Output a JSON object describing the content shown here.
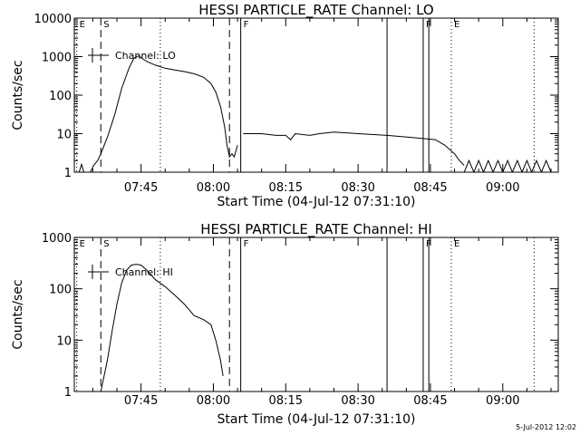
{
  "footer": {
    "date_stamp": "5-Jul-2012 12:02"
  },
  "chart_data": [
    {
      "type": "line",
      "title": "HESSI PARTICLE_RATE Channel: LO",
      "xlabel": "Start Time (04-Jul-12 07:31:10)",
      "ylabel": "Counts/sec",
      "yscale": "log",
      "xlim": [
        "07:31:10",
        "09:11:30"
      ],
      "ylim": [
        1,
        10000
      ],
      "x_ticks": [
        "07:45",
        "08:00",
        "08:15",
        "08:30",
        "08:45",
        "09:00"
      ],
      "y_ticks": [
        "1",
        "10",
        "100",
        "1000",
        "10000"
      ],
      "legend": {
        "position": "top-left",
        "entries": [
          "Channel: LO"
        ]
      },
      "series": [
        {
          "name": "Channel: LO",
          "segments": [
            [
              [
                "07:31:10",
                1
              ],
              [
                "07:32:10",
                1
              ],
              [
                "07:32:40",
                1.6
              ],
              [
                "07:33:10",
                1
              ],
              [
                "07:34:30",
                1
              ],
              [
                "07:35:10",
                1.5
              ],
              [
                "07:36:00",
                2
              ],
              [
                "07:36:40",
                3
              ],
              [
                "07:38:00",
                8
              ],
              [
                "07:39:30",
                30
              ],
              [
                "07:41:00",
                150
              ],
              [
                "07:42:30",
                500
              ],
              [
                "07:43:30",
                900
              ],
              [
                "07:44:30",
                1050
              ],
              [
                "07:45:30",
                850
              ],
              [
                "07:46:30",
                720
              ],
              [
                "07:48:00",
                600
              ],
              [
                "07:50:00",
                500
              ],
              [
                "07:52:00",
                450
              ],
              [
                "07:54:00",
                410
              ],
              [
                "07:56:00",
                360
              ],
              [
                "07:58:00",
                290
              ],
              [
                "07:59:30",
                200
              ],
              [
                "08:00:30",
                120
              ],
              [
                "08:01:30",
                50
              ],
              [
                "08:02:20",
                15
              ],
              [
                "08:02:50",
                5
              ],
              [
                "08:03:20",
                2.5
              ],
              [
                "08:03:50",
                3
              ],
              [
                "08:04:20",
                2.5
              ],
              [
                "08:05:00",
                5
              ]
            ],
            [
              [
                "08:06:10",
                10
              ],
              [
                "08:10:00",
                10
              ],
              [
                "08:13:00",
                9
              ],
              [
                "08:15:00",
                9
              ],
              [
                "08:16:00",
                7
              ],
              [
                "08:17:00",
                10
              ],
              [
                "08:20:00",
                9
              ],
              [
                "08:22:00",
                10
              ],
              [
                "08:25:00",
                11
              ],
              [
                "08:30:00",
                10
              ],
              [
                "08:36:00",
                9
              ],
              [
                "08:41:00",
                8
              ],
              [
                "08:46:00",
                7
              ],
              [
                "08:48:00",
                5
              ],
              [
                "08:50:00",
                3
              ],
              [
                "08:51:00",
                2
              ],
              [
                "08:52:00",
                1.5
              ]
            ],
            [
              [
                "08:52:00",
                1
              ],
              [
                "08:53:00",
                2
              ],
              [
                "08:54:00",
                1
              ],
              [
                "08:55:00",
                2
              ],
              [
                "08:56:00",
                1
              ],
              [
                "08:57:00",
                2
              ],
              [
                "08:58:00",
                1
              ],
              [
                "08:59:00",
                2
              ],
              [
                "09:00:00",
                1
              ],
              [
                "09:01:00",
                2
              ],
              [
                "09:02:00",
                1
              ],
              [
                "09:03:00",
                2
              ],
              [
                "09:04:00",
                1
              ],
              [
                "09:05:00",
                2
              ],
              [
                "09:06:00",
                1
              ],
              [
                "09:07:00",
                2
              ],
              [
                "09:08:00",
                1
              ],
              [
                "09:09:00",
                2
              ],
              [
                "09:10:00",
                1
              ]
            ]
          ]
        }
      ],
      "markers": [
        {
          "x": "07:31:40",
          "label": "E",
          "style": "dotted"
        },
        {
          "x": "07:36:40",
          "label": "S",
          "style": "dashed"
        },
        {
          "x": "07:49:00",
          "label": "",
          "style": "dotted"
        },
        {
          "x": "08:03:20",
          "label": "",
          "style": "dashed"
        },
        {
          "x": "08:05:40",
          "label": "F",
          "style": "solid"
        },
        {
          "x": "08:36:00",
          "label": "",
          "style": "solid"
        },
        {
          "x": "08:43:30",
          "label": "F",
          "style": "solid"
        },
        {
          "x": "08:44:40",
          "label": "",
          "style": "solid"
        },
        {
          "x": "08:49:20",
          "label": "E",
          "style": "dotted"
        },
        {
          "x": "09:06:30",
          "label": "",
          "style": "dotted"
        }
      ]
    },
    {
      "type": "line",
      "title": "HESSI PARTICLE_RATE Channel: HI",
      "xlabel": "Start Time (04-Jul-12 07:31:10)",
      "ylabel": "Counts/sec",
      "yscale": "log",
      "xlim": [
        "07:31:10",
        "09:11:30"
      ],
      "ylim": [
        1,
        1000
      ],
      "x_ticks": [
        "07:45",
        "08:00",
        "08:15",
        "08:30",
        "08:45",
        "09:00"
      ],
      "y_ticks": [
        "1",
        "10",
        "100",
        "1000"
      ],
      "legend": {
        "position": "top-left",
        "entries": [
          "Channel: HI"
        ]
      },
      "series": [
        {
          "name": "Channel: HI",
          "segments": [
            [
              [
                "07:36:40",
                1
              ],
              [
                "07:38:00",
                4
              ],
              [
                "07:39:00",
                15
              ],
              [
                "07:40:00",
                50
              ],
              [
                "07:41:00",
                130
              ],
              [
                "07:42:00",
                230
              ],
              [
                "07:43:00",
                290
              ],
              [
                "07:44:00",
                300
              ],
              [
                "07:45:00",
                290
              ],
              [
                "07:46:00",
                240
              ],
              [
                "07:47:00",
                190
              ],
              [
                "07:48:00",
                150
              ],
              [
                "07:50:00",
                110
              ],
              [
                "07:52:00",
                75
              ],
              [
                "07:54:00",
                50
              ],
              [
                "07:56:00",
                30
              ],
              [
                "07:58:00",
                25
              ],
              [
                "07:59:30",
                20
              ],
              [
                "08:00:30",
                10
              ],
              [
                "08:01:30",
                4
              ],
              [
                "08:02:00",
                2
              ]
            ]
          ]
        }
      ],
      "markers": [
        {
          "x": "07:31:40",
          "label": "E",
          "style": "dotted"
        },
        {
          "x": "07:36:40",
          "label": "S",
          "style": "dashed"
        },
        {
          "x": "07:49:00",
          "label": "",
          "style": "dotted"
        },
        {
          "x": "08:03:20",
          "label": "",
          "style": "dashed"
        },
        {
          "x": "08:05:40",
          "label": "F",
          "style": "solid"
        },
        {
          "x": "08:36:00",
          "label": "",
          "style": "solid"
        },
        {
          "x": "08:43:30",
          "label": "F",
          "style": "solid"
        },
        {
          "x": "08:44:40",
          "label": "",
          "style": "solid"
        },
        {
          "x": "08:49:20",
          "label": "E",
          "style": "dotted"
        },
        {
          "x": "09:06:30",
          "label": "",
          "style": "dotted"
        }
      ]
    }
  ]
}
